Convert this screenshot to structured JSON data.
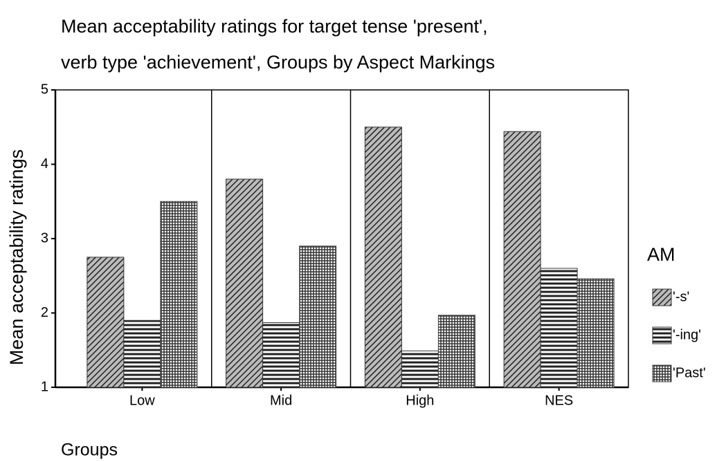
{
  "chart_data": {
    "type": "bar",
    "title": [
      "Mean acceptability ratings for target tense 'present',",
      "verb type 'achievement', Groups by Aspect Markings"
    ],
    "x_label": "Groups",
    "y_label": "Mean acceptability ratings",
    "categories": [
      "Low",
      "Mid",
      "High",
      "NES"
    ],
    "legend_title": "AM",
    "series": [
      {
        "name": "'-s'",
        "color": "#333333",
        "pattern": "diagonal",
        "values": [
          2.75,
          3.8,
          4.5,
          4.44
        ]
      },
      {
        "name": "'-ing'",
        "color": "#333333",
        "pattern": "horizontal",
        "values": [
          1.9,
          1.87,
          1.49,
          2.6
        ]
      },
      {
        "name": "'Past'",
        "color": "#444444",
        "pattern": "grid",
        "values": [
          3.5,
          2.9,
          1.97,
          2.46
        ]
      }
    ],
    "ylim": [
      1,
      5
    ],
    "yticks": [
      1,
      2,
      3,
      4,
      5
    ],
    "legend": "right"
  }
}
